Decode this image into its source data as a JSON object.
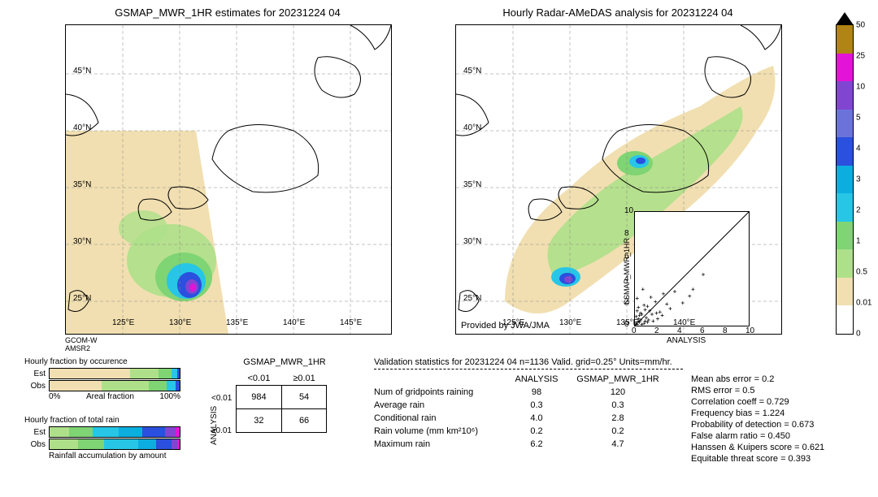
{
  "titles": {
    "left": "GSMAP_MWR_1HR estimates for 20231224 04",
    "right": "Hourly Radar-AMeDAS analysis for 20231224 04"
  },
  "map": {
    "lat_ticks": [
      "45°N",
      "40°N",
      "35°N",
      "30°N",
      "25°N"
    ],
    "lon_ticks": [
      "125°E",
      "130°E",
      "135°E",
      "140°E",
      "145°E"
    ],
    "left_satellite": "GCOM-W\nAMSR2",
    "right_provider": "Provided by JWA/JMA"
  },
  "colorbar": {
    "ticks": [
      "50",
      "25",
      "10",
      "5",
      "4",
      "3",
      "2",
      "1",
      "0.5",
      "0.01",
      "0"
    ],
    "colors": [
      "#b08415",
      "#e314d7",
      "#8146d1",
      "#6b73da",
      "#2b4fde",
      "#0caddf",
      "#27c6e6",
      "#7fd473",
      "#aee08a",
      "#f1dfb1",
      "#ffffff"
    ]
  },
  "bars": {
    "occ_title": "Hourly fraction by occurence",
    "tot_title": "Hourly fraction of total rain",
    "accum_title": "Rainfall accumulation by amount",
    "xlabel": "Areal fraction",
    "xmin": "0%",
    "xmax": "100%",
    "row_labels": [
      "Est",
      "Obs"
    ],
    "occ_est": [
      {
        "c": "#f1dfb1",
        "w": 0.62
      },
      {
        "c": "#aee08a",
        "w": 0.22
      },
      {
        "c": "#7fd473",
        "w": 0.1
      },
      {
        "c": "#27c6e6",
        "w": 0.04
      },
      {
        "c": "#2b4fde",
        "w": 0.02
      }
    ],
    "occ_obs": [
      {
        "c": "#f1dfb1",
        "w": 0.4
      },
      {
        "c": "#aee08a",
        "w": 0.36
      },
      {
        "c": "#7fd473",
        "w": 0.14
      },
      {
        "c": "#27c6e6",
        "w": 0.07
      },
      {
        "c": "#2b4fde",
        "w": 0.03
      }
    ],
    "tot_est": [
      {
        "c": "#aee08a",
        "w": 0.15
      },
      {
        "c": "#7fd473",
        "w": 0.18
      },
      {
        "c": "#27c6e6",
        "w": 0.2
      },
      {
        "c": "#0caddf",
        "w": 0.18
      },
      {
        "c": "#2b4fde",
        "w": 0.18
      },
      {
        "c": "#8146d1",
        "w": 0.08
      },
      {
        "c": "#e314d7",
        "w": 0.03
      }
    ],
    "tot_obs": [
      {
        "c": "#aee08a",
        "w": 0.22
      },
      {
        "c": "#7fd473",
        "w": 0.2
      },
      {
        "c": "#27c6e6",
        "w": 0.26
      },
      {
        "c": "#0caddf",
        "w": 0.14
      },
      {
        "c": "#2b4fde",
        "w": 0.12
      },
      {
        "c": "#8146d1",
        "w": 0.04
      },
      {
        "c": "#e314d7",
        "w": 0.02
      }
    ]
  },
  "contingency": {
    "title": "GSMAP_MWR_1HR",
    "col_headers": [
      "<0.01",
      "≥0.01"
    ],
    "side_label": "ANALYSIS",
    "row_headers": [
      "<0.01",
      "≥0.01"
    ],
    "cells": [
      [
        "984",
        "54"
      ],
      [
        "32",
        "66"
      ]
    ]
  },
  "stats": {
    "title": "Validation statistics for 20231224 04  n=1136 Valid. grid=0.25°  Units=mm/hr.",
    "header1": "ANALYSIS",
    "header2": "GSMAP_MWR_1HR",
    "rows": [
      {
        "label": "Num of gridpoints raining",
        "a": "98",
        "b": "120"
      },
      {
        "label": "Average rain",
        "a": "0.3",
        "b": "0.3"
      },
      {
        "label": "Conditional rain",
        "a": "4.0",
        "b": "2.8"
      },
      {
        "label": "Rain volume (mm km²10⁶)",
        "a": "0.2",
        "b": "0.2"
      },
      {
        "label": "Maximum rain",
        "a": "6.2",
        "b": "4.7"
      }
    ],
    "right": [
      "Mean abs error =    0.2",
      "RMS error =    0.5",
      "Correlation coeff =  0.729",
      "Frequency bias =  1.224",
      "Probability of detection =  0.673",
      "False alarm ratio =  0.450",
      "Hanssen & Kuipers score =  0.621",
      "Equitable threat score =  0.393"
    ]
  },
  "scatter": {
    "xlabel": "ANALYSIS",
    "ylabel": "GSMAP_MWR_1HR",
    "xlim": [
      0,
      10
    ],
    "ylim": [
      0,
      10
    ],
    "ticks": [
      "0",
      "2",
      "4",
      "6",
      "8",
      "10"
    ],
    "points": [
      [
        0.2,
        0.1
      ],
      [
        0.3,
        0.4
      ],
      [
        0.8,
        0.2
      ],
      [
        1.2,
        0.5
      ],
      [
        0.5,
        1.1
      ],
      [
        0.1,
        0.8
      ],
      [
        0.4,
        0.3
      ],
      [
        1.5,
        1.0
      ],
      [
        0.9,
        1.4
      ],
      [
        2.2,
        1.2
      ],
      [
        0.6,
        0.1
      ],
      [
        1.0,
        0.7
      ],
      [
        0.3,
        1.6
      ],
      [
        1.8,
        2.1
      ],
      [
        0.2,
        2.4
      ],
      [
        3.1,
        1.5
      ],
      [
        2.5,
        2.8
      ],
      [
        0.7,
        3.2
      ],
      [
        4.2,
        2.0
      ],
      [
        1.1,
        0.3
      ],
      [
        0.4,
        0.9
      ],
      [
        1.6,
        0.4
      ],
      [
        0.8,
        1.8
      ],
      [
        2.0,
        0.6
      ],
      [
        0.1,
        0.2
      ],
      [
        0.5,
        0.5
      ],
      [
        1.3,
        1.3
      ],
      [
        0.9,
        0.4
      ],
      [
        2.8,
        1.9
      ],
      [
        1.4,
        2.5
      ],
      [
        0.6,
        1.0
      ],
      [
        3.5,
        3.0
      ],
      [
        5.1,
        3.2
      ],
      [
        6.0,
        4.5
      ],
      [
        1.9,
        1.1
      ],
      [
        0.3,
        0.6
      ],
      [
        1.1,
        1.7
      ],
      [
        2.4,
        0.9
      ],
      [
        0.2,
        1.3
      ],
      [
        4.8,
        2.6
      ]
    ]
  },
  "map_style": {
    "land_stroke": "#000000",
    "grid_stroke": "#888888"
  }
}
